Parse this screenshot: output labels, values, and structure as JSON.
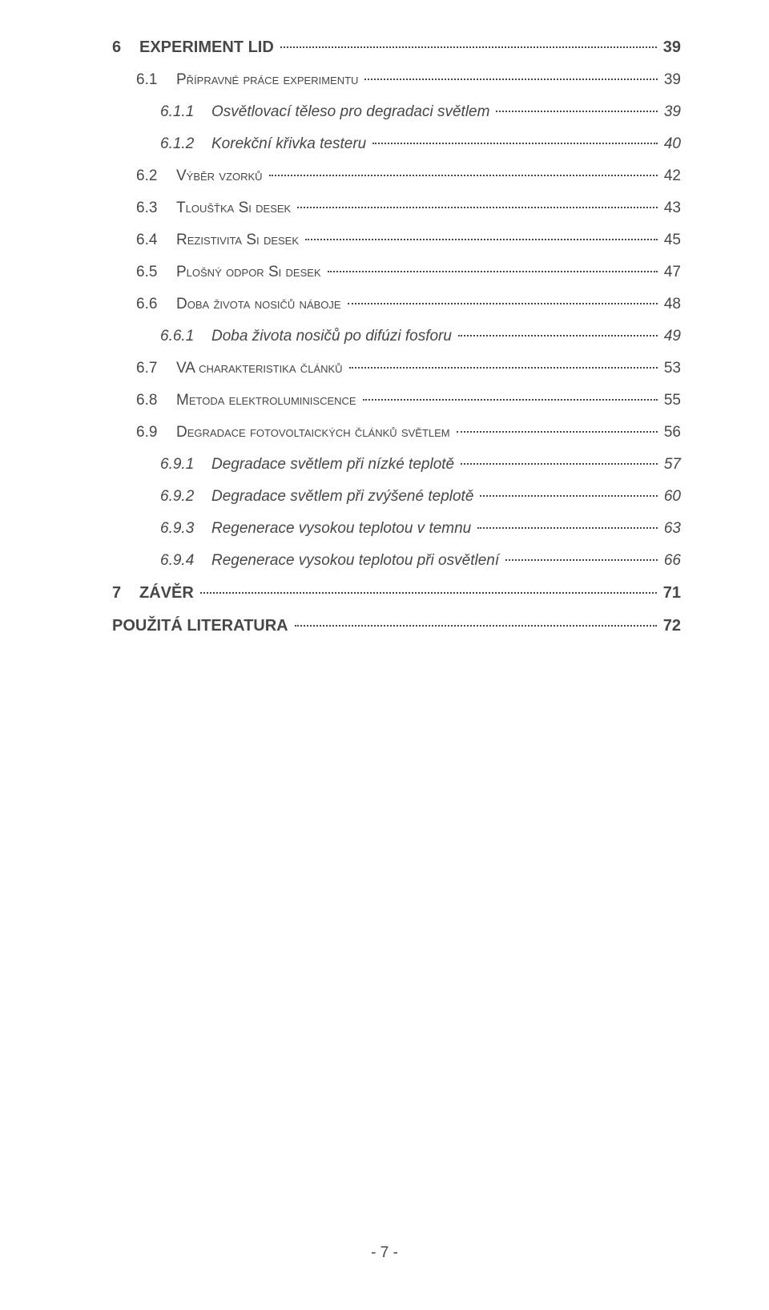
{
  "colors": {
    "text": "#474747",
    "background": "#ffffff",
    "dot": "#474747"
  },
  "typography": {
    "family": "Arial",
    "lvl1_size_pt": 15,
    "lvl1_weight": "bold",
    "lvl2_size_pt": 14,
    "lvl2_variant": "small-caps",
    "lvl3_size_pt": 14,
    "lvl3_style": "italic"
  },
  "toc": [
    {
      "level": 1,
      "num": "6",
      "label": "EXPERIMENT LID",
      "page": "39"
    },
    {
      "level": 2,
      "num": "6.1",
      "label": "Přípravné práce experimentu",
      "page": "39"
    },
    {
      "level": 3,
      "num": "6.1.1",
      "label": "Osvětlovací těleso pro degradaci světlem",
      "page": "39"
    },
    {
      "level": 3,
      "num": "6.1.2",
      "label": "Korekční křivka testeru",
      "page": "40"
    },
    {
      "level": 2,
      "num": "6.2",
      "label": "Výběr vzorků",
      "page": "42"
    },
    {
      "level": 2,
      "num": "6.3",
      "label": "Tloušťka Si desek",
      "page": "43"
    },
    {
      "level": 2,
      "num": "6.4",
      "label": "Rezistivita Si desek",
      "page": "45"
    },
    {
      "level": 2,
      "num": "6.5",
      "label": "Plošný odpor Si desek",
      "page": "47"
    },
    {
      "level": 2,
      "num": "6.6",
      "label": "Doba života nosičů náboje",
      "page": "48"
    },
    {
      "level": 3,
      "num": "6.6.1",
      "label": "Doba života nosičů po difúzi fosforu",
      "page": "49"
    },
    {
      "level": 2,
      "num": "6.7",
      "label": "VA charakteristika článků",
      "page": "53"
    },
    {
      "level": 2,
      "num": "6.8",
      "label": "Metoda elektroluminiscence",
      "page": "55"
    },
    {
      "level": 2,
      "num": "6.9",
      "label": "Degradace fotovoltaických článků světlem",
      "page": "56"
    },
    {
      "level": 3,
      "num": "6.9.1",
      "label": "Degradace světlem při nízké teplotě",
      "page": "57"
    },
    {
      "level": 3,
      "num": "6.9.2",
      "label": "Degradace světlem při zvýšené teplotě",
      "page": "60"
    },
    {
      "level": 3,
      "num": "6.9.3",
      "label": "Regenerace vysokou teplotou v temnu",
      "page": "63"
    },
    {
      "level": 3,
      "num": "6.9.4",
      "label": "Regenerace vysokou teplotou při osvětlení",
      "page": "66"
    },
    {
      "level": 1,
      "num": "7",
      "label": "ZÁVĚR",
      "page": "71"
    },
    {
      "level": 0,
      "num": "",
      "label": "POUŽITÁ LITERATURA",
      "page": "72"
    }
  ],
  "footer": "- 7 -"
}
